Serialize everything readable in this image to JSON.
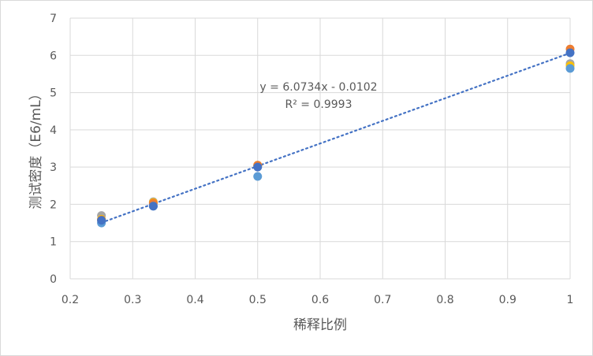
{
  "chart_data": {
    "type": "scatter",
    "title": "",
    "xlabel": "稀释比例",
    "ylabel": "测试密度（E6/mL）",
    "xlim": [
      0.2,
      1
    ],
    "ylim": [
      0,
      7
    ],
    "x_ticks": [
      "0.2",
      "0.3",
      "0.4",
      "0.5",
      "0.6",
      "0.7",
      "0.8",
      "0.9",
      "1"
    ],
    "y_ticks": [
      "0",
      "1",
      "2",
      "3",
      "4",
      "5",
      "6",
      "7"
    ],
    "grid": true,
    "legend": "none",
    "x": [
      0.25,
      0.333,
      0.5,
      1
    ],
    "series": [
      {
        "color": "#A5A5A5",
        "values": [
          1.7,
          2.07,
          3.02,
          5.78
        ]
      },
      {
        "color": "#FFC000",
        "values": [
          1.6,
          2.05,
          3.05,
          5.72
        ]
      },
      {
        "color": "#ED7D31",
        "values": [
          1.58,
          2.03,
          3.05,
          6.17
        ]
      },
      {
        "color": "#5B9BD5",
        "values": [
          1.5,
          1.95,
          2.75,
          5.65
        ]
      },
      {
        "color": "#4472C4",
        "values": [
          1.57,
          1.95,
          3.0,
          6.07
        ]
      }
    ],
    "trendline": {
      "type": "linear",
      "slope": 6.0734,
      "intercept": -0.0102,
      "color": "#4472C4",
      "equation": "y = 6.0734x - 0.0102",
      "r_squared": "R² = 0.9993"
    }
  }
}
